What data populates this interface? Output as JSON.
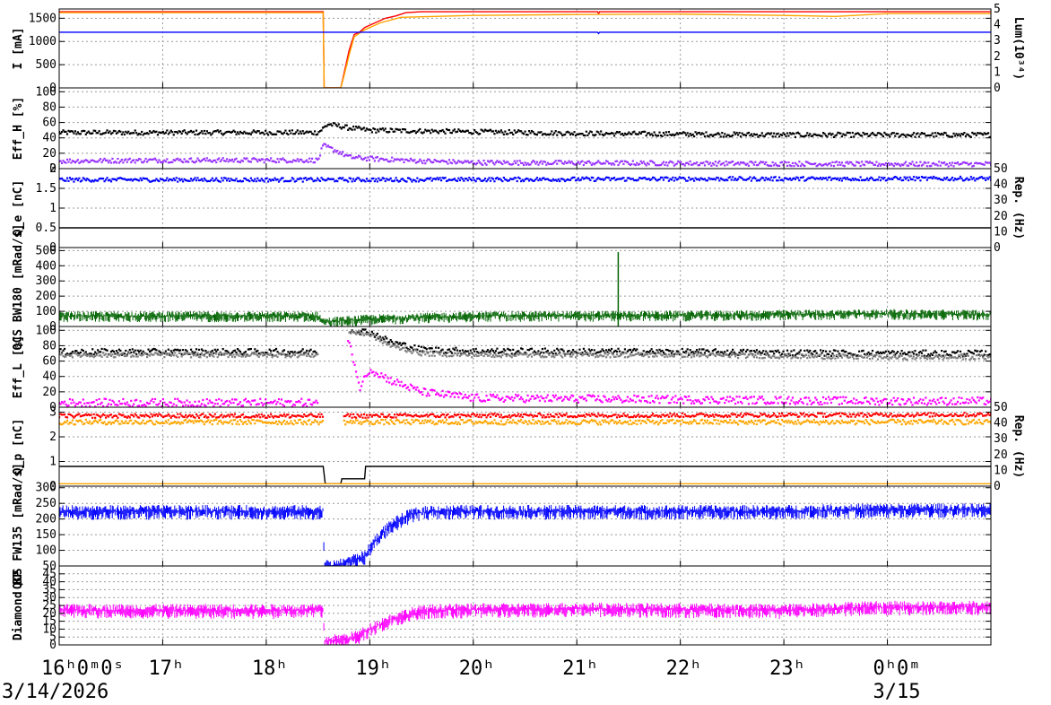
{
  "chart_data": {
    "type": "line",
    "time_axis": {
      "start": "2026-03-14 16:00",
      "end": "2026-03-15 01:00",
      "ticks": [
        {
          "t": 0,
          "label": "16ʰ0ᵐ0ˢ"
        },
        {
          "t": 1,
          "label": "17ʰ"
        },
        {
          "t": 2,
          "label": "18ʰ"
        },
        {
          "t": 3,
          "label": "19ʰ"
        },
        {
          "t": 4,
          "label": "20ʰ"
        },
        {
          "t": 5,
          "label": "21ʰ"
        },
        {
          "t": 6,
          "label": "22ʰ"
        },
        {
          "t": 7,
          "label": "23ʰ"
        },
        {
          "t": 8,
          "label": "0ʰ0ᵐ"
        }
      ],
      "dates": [
        {
          "t": 0,
          "label": "3/14/2026"
        },
        {
          "t": 8,
          "label": "3/15"
        }
      ]
    },
    "panels": [
      {
        "id": "current",
        "ylabel": "I [mA]",
        "ylim": [
          0,
          1700
        ],
        "yticks": [
          0,
          500,
          1000,
          1500
        ],
        "right_axis": {
          "label": "Lum(10³⁴)",
          "ylim": [
            0,
            5
          ],
          "ticks": [
            0,
            1,
            2,
            3,
            4,
            5
          ]
        },
        "series": [
          {
            "color": "#ff0000",
            "style": "line",
            "points": [
              [
                0,
                1640
              ],
              [
                2.55,
                1640
              ],
              [
                2.56,
                0
              ],
              [
                2.72,
                0
              ],
              [
                2.75,
                300
              ],
              [
                2.8,
                800
              ],
              [
                2.85,
                1150
              ],
              [
                2.9,
                1200
              ],
              [
                2.95,
                1300
              ],
              [
                3.05,
                1400
              ],
              [
                3.15,
                1500
              ],
              [
                3.25,
                1550
              ],
              [
                3.35,
                1620
              ],
              [
                3.5,
                1640
              ],
              [
                5.2,
                1640
              ],
              [
                5.21,
                1600
              ],
              [
                5.22,
                1640
              ],
              [
                9,
                1640
              ]
            ]
          },
          {
            "color": "#ffa500",
            "style": "line",
            "points": [
              [
                0,
                1620
              ],
              [
                2.55,
                1620
              ],
              [
                2.56,
                0
              ],
              [
                2.72,
                0
              ],
              [
                2.75,
                250
              ],
              [
                2.8,
                700
              ],
              [
                2.85,
                1100
              ],
              [
                2.95,
                1250
              ],
              [
                3.1,
                1400
              ],
              [
                3.3,
                1520
              ],
              [
                4.0,
                1560
              ],
              [
                5.0,
                1580
              ],
              [
                6.0,
                1590
              ],
              [
                7.0,
                1560
              ],
              [
                7.5,
                1540
              ],
              [
                8.0,
                1600
              ],
              [
                9,
                1600
              ]
            ]
          },
          {
            "color": "#0000ff",
            "style": "line",
            "points": [
              [
                0,
                1200
              ],
              [
                5.2,
                1200
              ],
              [
                5.21,
                1170
              ],
              [
                5.22,
                1200
              ],
              [
                9,
                1200
              ]
            ]
          }
        ]
      },
      {
        "id": "eff-h",
        "ylabel": "Eff_H [%]",
        "ylim": [
          0,
          105
        ],
        "yticks": [
          0,
          20,
          40,
          60,
          80,
          100
        ],
        "series": [
          {
            "color": "#000000",
            "style": "dots",
            "points": [
              [
                0,
                47
              ],
              [
                1,
                47
              ],
              [
                2,
                47
              ],
              [
                2.5,
                47
              ],
              [
                2.6,
                58
              ],
              [
                2.8,
                53
              ],
              [
                3,
                50
              ],
              [
                4,
                48
              ],
              [
                5,
                46
              ],
              [
                6,
                45
              ],
              [
                7,
                44
              ],
              [
                8,
                44
              ],
              [
                9,
                44
              ]
            ],
            "noise": 3
          },
          {
            "color": "#9933ff",
            "style": "dots",
            "points": [
              [
                0,
                10
              ],
              [
                1,
                11
              ],
              [
                2,
                11
              ],
              [
                2.5,
                11
              ],
              [
                2.55,
                30
              ],
              [
                2.7,
                22
              ],
              [
                2.8,
                15
              ],
              [
                3,
                13
              ],
              [
                3.5,
                10
              ],
              [
                4,
                8
              ],
              [
                6,
                7
              ],
              [
                8,
                6
              ],
              [
                9,
                6
              ]
            ],
            "noise": 3
          }
        ]
      },
      {
        "id": "qe",
        "ylabel": "Q_e [nC]",
        "ylim": [
          0,
          2
        ],
        "yticks": [
          0,
          0.5,
          1,
          1.5,
          2
        ],
        "right_axis": {
          "label": "Rep. (Hz)",
          "ylim": [
            0,
            50
          ],
          "ticks": [
            0,
            10,
            20,
            30,
            40,
            50
          ]
        },
        "series": [
          {
            "color": "#0000ff",
            "style": "dots",
            "points": [
              [
                0,
                1.72
              ],
              [
                3,
                1.72
              ],
              [
                6,
                1.74
              ],
              [
                9,
                1.75
              ]
            ],
            "noise": 0.05
          },
          {
            "color": "#000000",
            "style": "line",
            "points": [
              [
                0,
                0.5
              ],
              [
                9,
                0.5
              ]
            ]
          }
        ]
      },
      {
        "id": "bw180",
        "ylabel": "QCS BW180 [mRad/s]",
        "ylim": [
          0,
          520
        ],
        "yticks": [
          0,
          100,
          200,
          300,
          400,
          500
        ],
        "series": [
          {
            "color": "#006400",
            "style": "fill",
            "points": [
              [
                0,
                70
              ],
              [
                2.5,
                70
              ],
              [
                2.55,
                30
              ],
              [
                3,
                50
              ],
              [
                4,
                70
              ],
              [
                6,
                75
              ],
              [
                7,
                80
              ],
              [
                8,
                85
              ],
              [
                9,
                80
              ]
            ],
            "noise": 30,
            "spike": {
              "t": 5.4,
              "value": 490
            }
          }
        ]
      },
      {
        "id": "eff-l",
        "ylabel": "Eff_L [%]",
        "ylim": [
          0,
          105
        ],
        "yticks": [
          0,
          20,
          40,
          60,
          80,
          100
        ],
        "series": [
          {
            "color": "#000000",
            "style": "dots",
            "points": [
              [
                0,
                72
              ],
              [
                2.5,
                72
              ],
              [
                2.6,
                null
              ],
              [
                2.75,
                null
              ],
              [
                2.8,
                100
              ],
              [
                3.0,
                98
              ],
              [
                3.2,
                85
              ],
              [
                3.5,
                75
              ],
              [
                4,
                73
              ],
              [
                6,
                72
              ],
              [
                8,
                70
              ],
              [
                9,
                70
              ]
            ],
            "noise": 4
          },
          {
            "color": "#808080",
            "style": "dots",
            "points": [
              [
                0,
                68
              ],
              [
                2.5,
                68
              ],
              [
                2.6,
                null
              ],
              [
                2.75,
                null
              ],
              [
                2.8,
                98
              ],
              [
                3.0,
                95
              ],
              [
                3.2,
                80
              ],
              [
                3.5,
                70
              ],
              [
                4,
                68
              ],
              [
                6,
                68
              ],
              [
                8,
                65
              ],
              [
                9,
                65
              ]
            ],
            "noise": 3
          },
          {
            "color": "#ff00ff",
            "style": "dots",
            "points": [
              [
                0,
                6
              ],
              [
                2.5,
                6
              ],
              [
                2.6,
                null
              ],
              [
                2.75,
                null
              ],
              [
                2.78,
                90
              ],
              [
                2.85,
                60
              ],
              [
                2.9,
                25
              ],
              [
                3.0,
                50
              ],
              [
                3.2,
                35
              ],
              [
                3.5,
                20
              ],
              [
                4,
                12
              ],
              [
                6,
                10
              ],
              [
                8,
                8
              ],
              [
                9,
                8
              ]
            ],
            "noise": 5
          }
        ]
      },
      {
        "id": "qp",
        "ylabel": "Q_p [nC]",
        "ylim": [
          0,
          3.2
        ],
        "yticks": [
          0,
          1,
          2,
          3
        ],
        "right_axis": {
          "label": "Rep. (Hz)",
          "ylim": [
            0,
            50
          ],
          "ticks": [
            0,
            10,
            20,
            30,
            40,
            50
          ]
        },
        "series": [
          {
            "color": "#ff0000",
            "style": "dots",
            "points": [
              [
                0,
                2.85
              ],
              [
                2.55,
                2.85
              ],
              [
                2.56,
                null
              ],
              [
                2.72,
                null
              ],
              [
                2.75,
                2.85
              ],
              [
                9,
                2.9
              ]
            ],
            "noise": 0.08
          },
          {
            "color": "#ffa500",
            "style": "dots",
            "points": [
              [
                0,
                2.6
              ],
              [
                2.55,
                2.6
              ],
              [
                2.56,
                null
              ],
              [
                2.72,
                null
              ],
              [
                2.75,
                2.6
              ],
              [
                9,
                2.6
              ]
            ],
            "noise": 0.1
          },
          {
            "color": "#000000",
            "style": "line",
            "points": [
              [
                0,
                0.8
              ],
              [
                2.55,
                0.8
              ],
              [
                2.57,
                0.1
              ],
              [
                2.72,
                0.1
              ],
              [
                2.73,
                0.3
              ],
              [
                2.95,
                0.3
              ],
              [
                2.96,
                0.8
              ],
              [
                9,
                0.8
              ]
            ]
          },
          {
            "color": "#ffa500",
            "style": "line",
            "points": [
              [
                0,
                0.1
              ],
              [
                9,
                0.1
              ]
            ]
          }
        ]
      },
      {
        "id": "fw135",
        "ylabel": "QCS FW135 [mRad/s]",
        "ylim": [
          50,
          305
        ],
        "yticks": [
          50,
          100,
          150,
          200,
          250,
          300
        ],
        "series": [
          {
            "color": "#0000ff",
            "style": "fill",
            "points": [
              [
                0,
                225
              ],
              [
                2.55,
                225
              ],
              [
                2.56,
                50
              ],
              [
                2.7,
                50
              ],
              [
                2.75,
                60
              ],
              [
                2.85,
                70
              ],
              [
                2.95,
                80
              ],
              [
                3.05,
                130
              ],
              [
                3.2,
                180
              ],
              [
                3.4,
                215
              ],
              [
                3.6,
                225
              ],
              [
                5,
                225
              ],
              [
                7,
                225
              ],
              [
                7.8,
                230
              ],
              [
                9,
                230
              ]
            ],
            "noise": 20
          }
        ]
      },
      {
        "id": "diamond",
        "ylabel": "Diamond BP",
        "ylim": [
          0,
          50
        ],
        "yticks": [
          0,
          5,
          10,
          15,
          20,
          25,
          30,
          35,
          40,
          45
        ],
        "series": [
          {
            "color": "#ff00ff",
            "style": "fill",
            "points": [
              [
                0,
                22
              ],
              [
                2.55,
                22
              ],
              [
                2.56,
                2
              ],
              [
                2.8,
                4
              ],
              [
                2.9,
                6
              ],
              [
                3.0,
                10
              ],
              [
                3.2,
                16
              ],
              [
                3.4,
                20
              ],
              [
                3.6,
                22
              ],
              [
                5,
                23
              ],
              [
                7,
                22
              ],
              [
                7.8,
                24
              ],
              [
                9,
                24
              ]
            ],
            "noise": 4
          }
        ]
      }
    ]
  }
}
